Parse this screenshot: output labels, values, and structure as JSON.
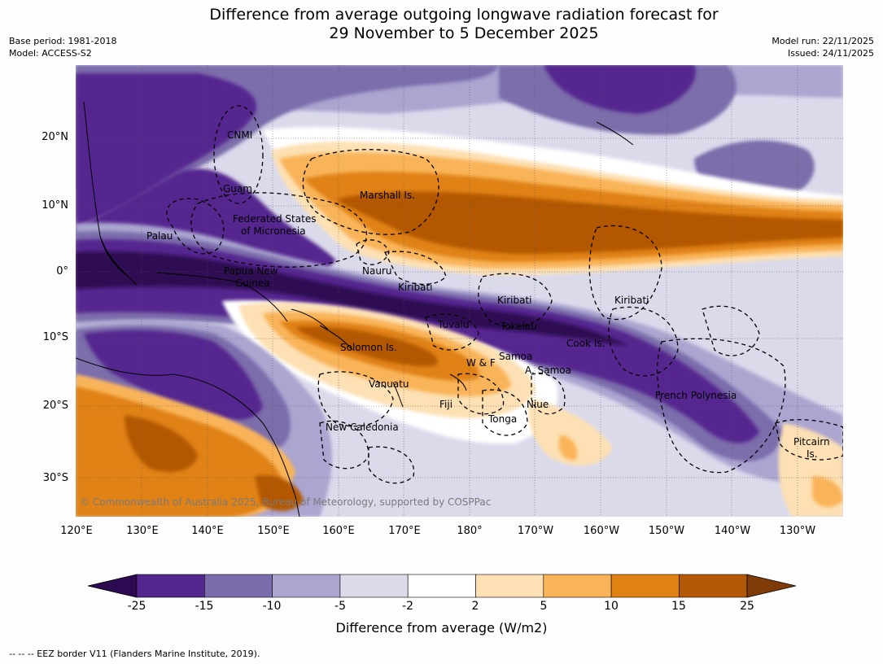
{
  "title": {
    "line1": "Difference from average outgoing longwave radiation forecast for",
    "line2": "29 November to 5 December 2025"
  },
  "meta": {
    "base_period": "Base period: 1981-2018",
    "model": "Model: ACCESS-S2",
    "model_run": "Model run: 22/11/2025",
    "issued": "Issued: 24/11/2025"
  },
  "map": {
    "copyright": "© Commonwealth of Australia 2025, Bureau of Meteorology, supported by COSPPac",
    "latitude_ticks": [
      "20°N",
      "10°N",
      "0°",
      "10°S",
      "20°S",
      "30°S"
    ],
    "longitude_ticks": [
      "120°E",
      "130°E",
      "140°E",
      "150°E",
      "160°E",
      "170°E",
      "180°",
      "170°W",
      "160°W",
      "150°W",
      "140°W",
      "130°W"
    ],
    "labels": {
      "cnmi": "CNMI",
      "guam": "Guam",
      "marshall_islands": "Marshall Is.",
      "fsm_line1": "Federated States",
      "fsm_line2": "of Micronesia",
      "palau": "Palau",
      "png_line1": "Papua New",
      "png_line2": "Guinea",
      "nauru": "Nauru",
      "kiribati_west": "Kiribati",
      "kiribati_central": "Kiribati",
      "kiribati_east": "Kiribati",
      "tuvalu": "Tuvalu",
      "tokelau": "Tokelau",
      "solomon_islands": "Solomon Is.",
      "cook_islands": "Cook Is.",
      "samoa": "Samoa",
      "wallis_futuna": "W & F",
      "american_samoa": "A. Samoa",
      "vanuatu": "Vanuatu",
      "fiji": "Fiji",
      "niue": "Niue",
      "tonga": "Tonga",
      "new_caledonia": "New Caledonia",
      "french_polynesia": "French Polynesia",
      "pitcairn_line1": "Pitcairn",
      "pitcairn_line2": "Is."
    }
  },
  "colorbar": {
    "label": "Difference from average (W/m2)",
    "ticks": [
      "-25",
      "-15",
      "-10",
      "-5",
      "-2",
      "2",
      "5",
      "10",
      "15",
      "25"
    ],
    "colors": {
      "below_min": "#2d0b52",
      "lt_m15": "#54278f",
      "m15_m10": "#7b6dab",
      "m10_m5": "#aba5d0",
      "m5_m2": "#dadaeb",
      "m2_2": "#ffffff",
      "p2_5": "#fde0b3",
      "p5_10": "#f9b45a",
      "p10_15": "#e08214",
      "p15_25": "#b35806",
      "above_max": "#7f3b08"
    }
  },
  "footnote": "--  --  -- EEZ border V11 (Flanders Marine Institute, 2019)."
}
